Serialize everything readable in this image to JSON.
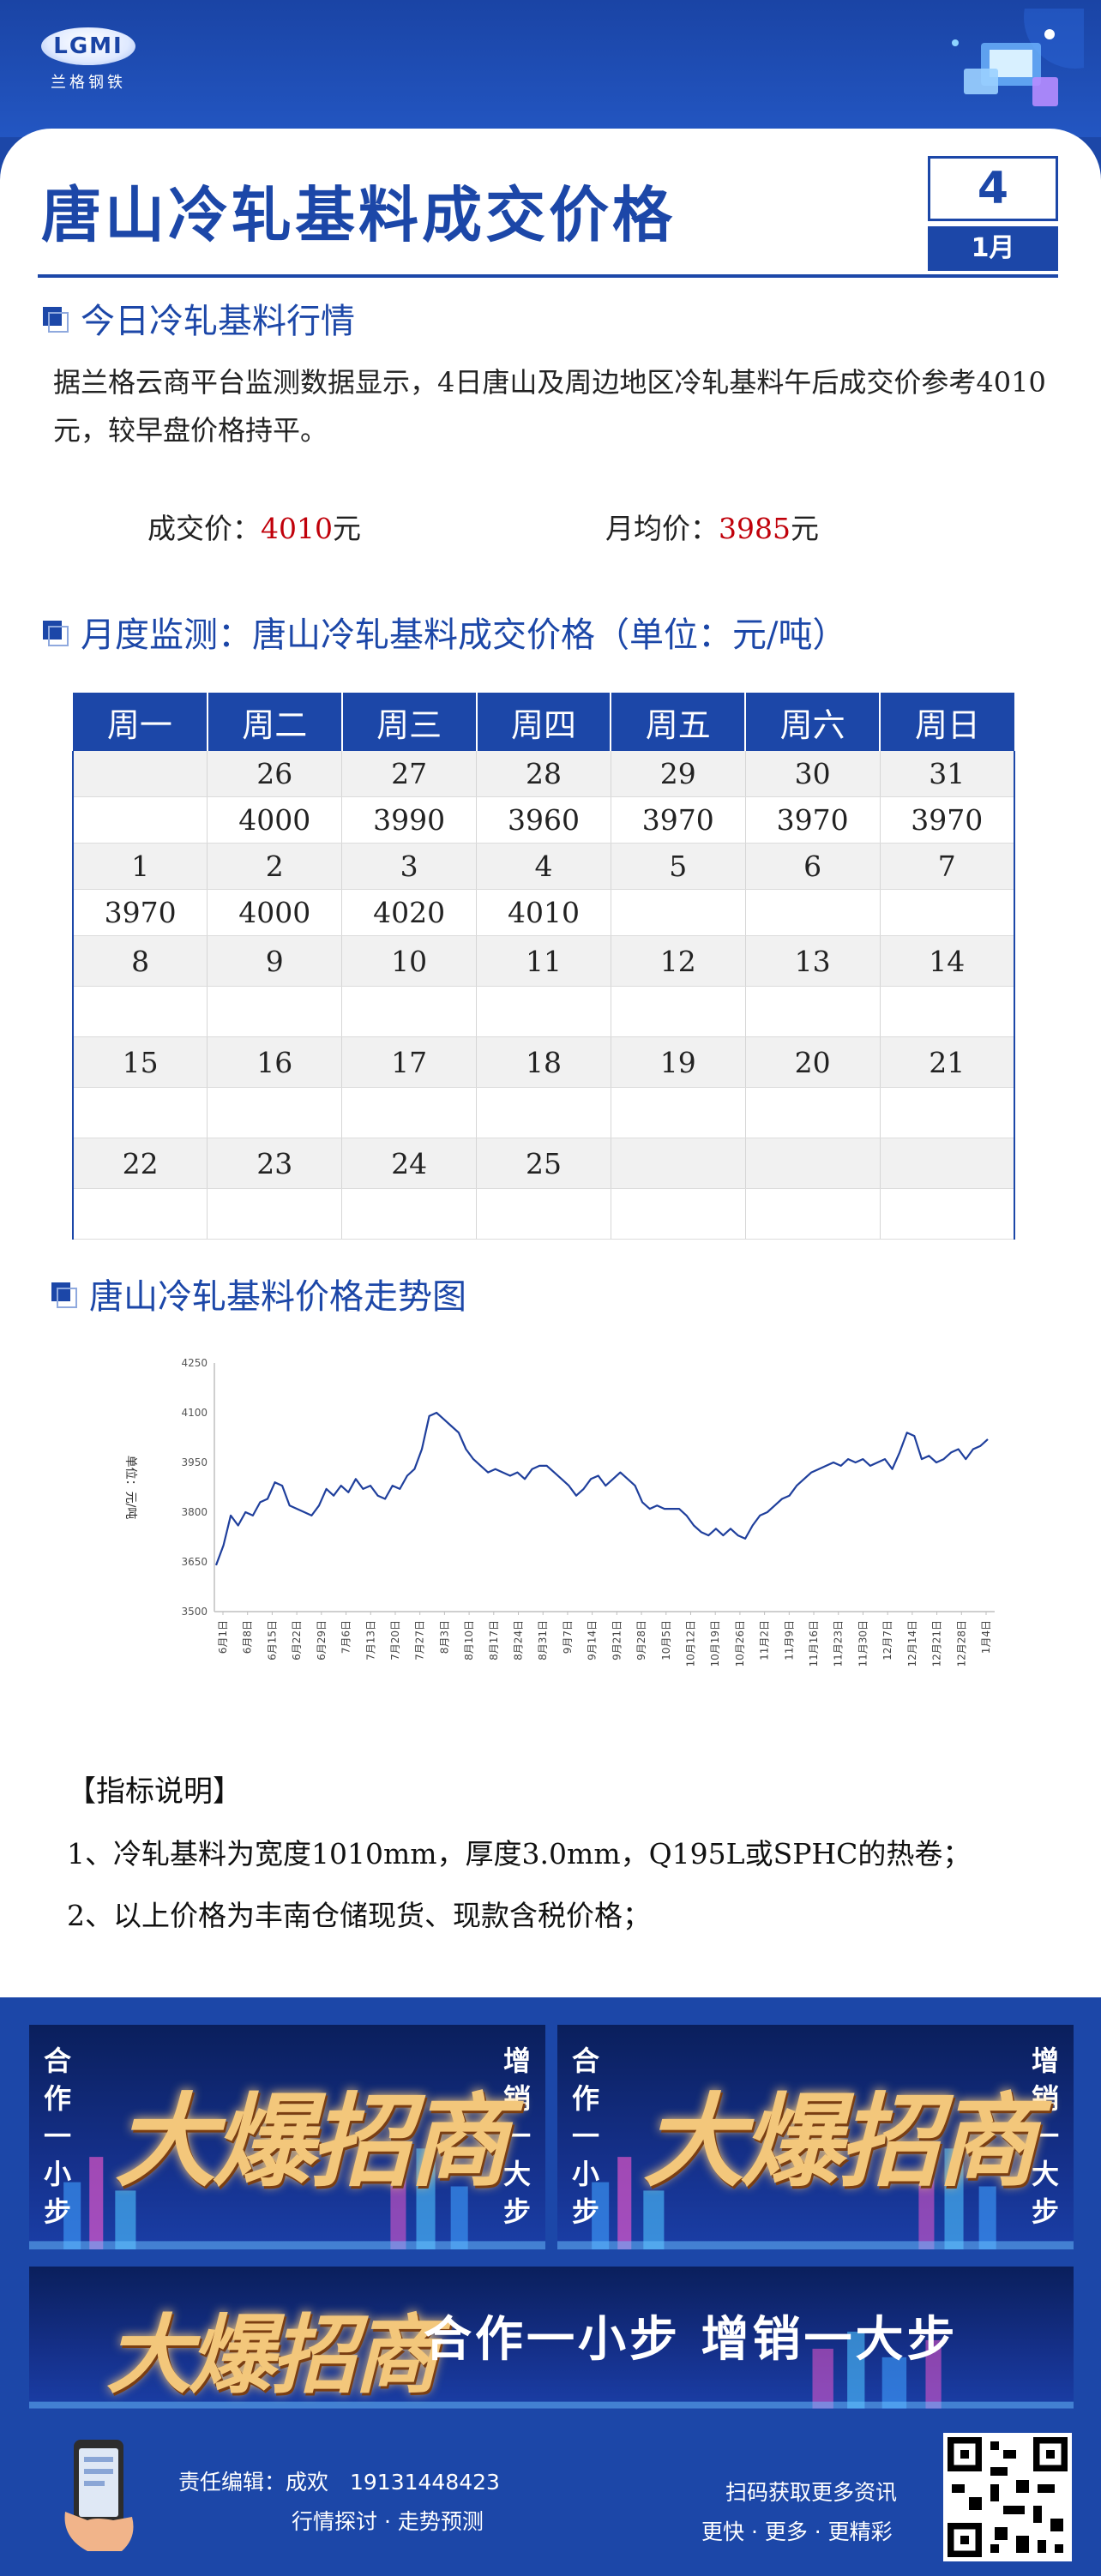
{
  "brand": {
    "logo_mark": "LGMI",
    "logo_text": "兰格钢铁"
  },
  "header": {
    "title": "唐山冷轧基料成交价格",
    "day": "4",
    "month": "1月"
  },
  "today": {
    "section_title": "今日冷轧基料行情",
    "text": "据兰格云商平台监测数据显示，4日唐山及周边地区冷轧基料午后成交价参考4010元，较早盘价格持平。",
    "deal_label": "成交价：",
    "deal_value": "4010",
    "monthly_label": "月均价：",
    "monthly_value": "3985",
    "unit": "元"
  },
  "monthly": {
    "section_title": "月度监测：唐山冷轧基料成交价格（单位：元/吨）",
    "weekdays": [
      "周一",
      "周二",
      "周三",
      "周四",
      "周五",
      "周六",
      "周日"
    ],
    "weeks": [
      {
        "dates": [
          "",
          "26",
          "27",
          "28",
          "29",
          "30",
          "31"
        ],
        "prices": [
          "",
          "4000",
          "3990",
          "3960",
          "3970",
          "3970",
          "3970"
        ],
        "colors": [
          "",
          "red",
          "green",
          "green",
          "red",
          "black",
          "black"
        ]
      },
      {
        "dates": [
          "1",
          "2",
          "3",
          "4",
          "5",
          "6",
          "7"
        ],
        "prices": [
          "3970",
          "4000",
          "4020",
          "4010",
          "",
          "",
          ""
        ],
        "colors": [
          "black",
          "red",
          "red",
          "green",
          "",
          "",
          ""
        ]
      },
      {
        "dates": [
          "8",
          "9",
          "10",
          "11",
          "12",
          "13",
          "14"
        ],
        "prices": [
          "",
          "",
          "",
          "",
          "",
          "",
          ""
        ],
        "colors": [
          "",
          "",
          "",
          "",
          "",
          "",
          ""
        ]
      },
      {
        "dates": [
          "15",
          "16",
          "17",
          "18",
          "19",
          "20",
          "21"
        ],
        "prices": [
          "",
          "",
          "",
          "",
          "",
          "",
          ""
        ],
        "colors": [
          "",
          "",
          "",
          "",
          "",
          "",
          ""
        ]
      },
      {
        "dates": [
          "22",
          "23",
          "24",
          "25",
          "",
          "",
          ""
        ],
        "prices": [
          "",
          "",
          "",
          "",
          "",
          "",
          ""
        ],
        "colors": [
          "",
          "",
          "",
          "",
          "",
          "",
          ""
        ]
      }
    ]
  },
  "trend": {
    "section_title": "唐山冷轧基料价格走势图"
  },
  "chart_data": {
    "type": "line",
    "ylabel": "单位：元/吨",
    "ylim": [
      3500,
      4250
    ],
    "yticks": [
      3500,
      3650,
      3800,
      3950,
      4100,
      4250
    ],
    "xticks": [
      "6月1日",
      "6月8日",
      "6月15日",
      "6月22日",
      "6月29日",
      "7月6日",
      "7月13日",
      "7月20日",
      "7月27日",
      "8月3日",
      "8月10日",
      "8月17日",
      "8月24日",
      "8月31日",
      "9月7日",
      "9月14日",
      "9月21日",
      "9月28日",
      "10月5日",
      "10月12日",
      "10月19日",
      "10月26日",
      "11月2日",
      "11月9日",
      "11月16日",
      "11月23日",
      "11月30日",
      "12月7日",
      "12月14日",
      "12月21日",
      "12月28日",
      "1月4日"
    ],
    "series": [
      {
        "values": [
          3640,
          3700,
          3790,
          3760,
          3800,
          3790,
          3830,
          3840,
          3890,
          3880,
          3820,
          3810,
          3800,
          3790,
          3820,
          3870,
          3850,
          3880,
          3860,
          3900,
          3870,
          3880,
          3850,
          3840,
          3880,
          3870,
          3910,
          3930,
          3990,
          4090,
          4100,
          4080,
          4060,
          4040,
          3990,
          3960,
          3940,
          3920,
          3930,
          3920,
          3910,
          3920,
          3900,
          3930,
          3940,
          3940,
          3920,
          3900,
          3880,
          3850,
          3870,
          3900,
          3910,
          3880,
          3900,
          3920,
          3900,
          3880,
          3830,
          3810,
          3820,
          3810,
          3810,
          3810,
          3790,
          3760,
          3740,
          3730,
          3750,
          3730,
          3750,
          3730,
          3720,
          3760,
          3790,
          3800,
          3820,
          3840,
          3850,
          3880,
          3900,
          3920,
          3930,
          3940,
          3950,
          3940,
          3960,
          3950,
          3960,
          3940,
          3950,
          3960,
          3930,
          3980,
          4040,
          4030,
          3960,
          3970,
          3950,
          3960,
          3980,
          3990,
          3960,
          3990,
          4000,
          4020
        ]
      }
    ]
  },
  "notes": {
    "title": "【指标说明】",
    "items": [
      "1、冷轧基料为宽度1010mm，厚度3.0mm，Q195L或SPHC的热卷；",
      "2、以上价格为丰南仓储现货、现款含税价格；"
    ]
  },
  "banners": {
    "side_left": "合作一小步",
    "side_right": "增销一大步",
    "slogan": "大爆招商",
    "wide_slogan": "合作一小步  增销一大步"
  },
  "footer": {
    "editor": "责任编辑：成欢　19131448423",
    "tagline": "行情探讨 · 走势预测",
    "scan": "扫码获取更多资讯",
    "more": "更快 · 更多 · 更精彩"
  },
  "colors": {
    "brand_blue": "#1c47a8",
    "price_up": "#c0000a",
    "price_down": "#0c9a3a"
  }
}
